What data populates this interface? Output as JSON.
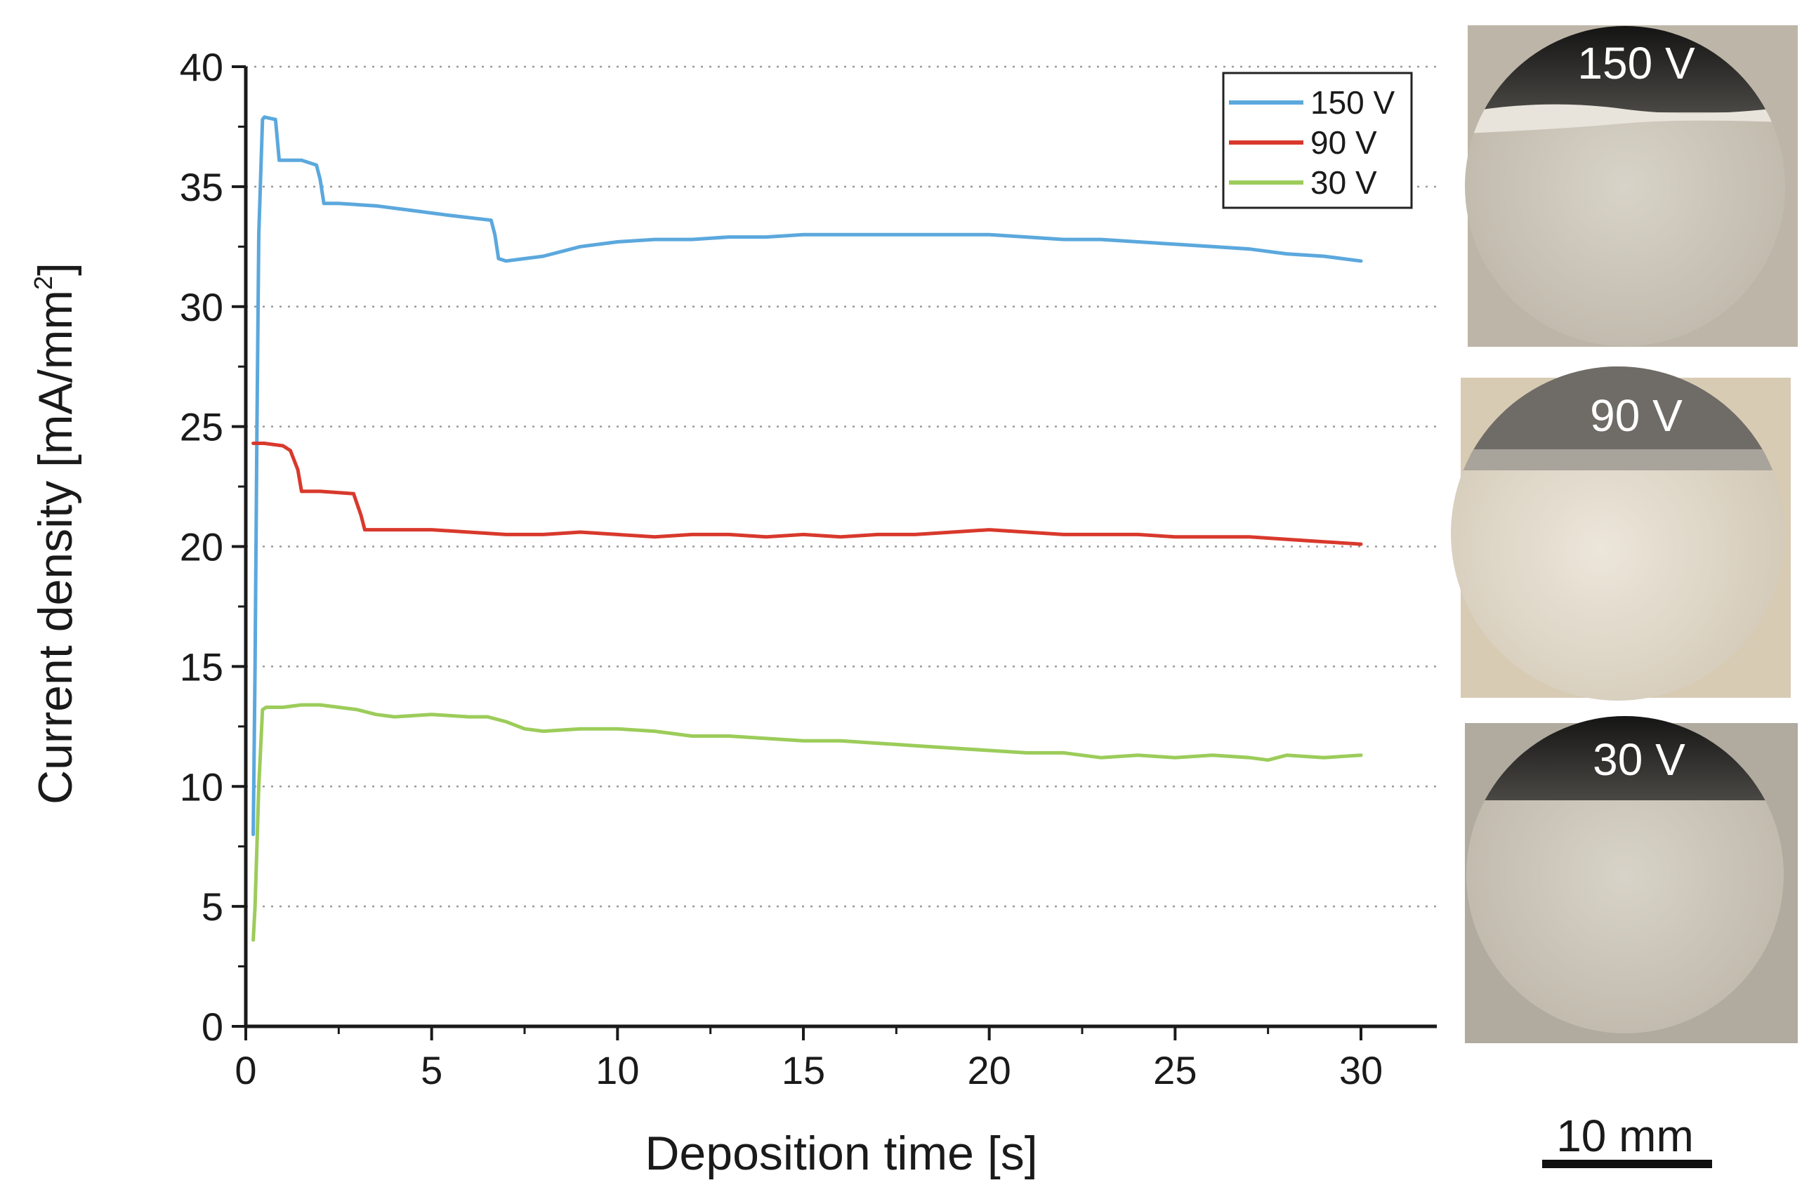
{
  "chart_data": {
    "type": "line",
    "title": "",
    "xlabel": "Deposition time [s]",
    "ylabel": "Current density [mA/mm",
    "ylabel_sup": "2",
    "ylabel_close": "]",
    "xlim": [
      0,
      32
    ],
    "ylim": [
      0,
      40
    ],
    "xticks": [
      "0",
      "5",
      "10",
      "15",
      "20",
      "25",
      "30"
    ],
    "yticks": [
      "0",
      "5",
      "10",
      "15",
      "20",
      "25",
      "30",
      "35",
      "40"
    ],
    "grid": "horizontal dotted",
    "legend_position": "top-right",
    "series": [
      {
        "name": "150 V",
        "color": "#5ba8dd",
        "x": [
          0.2,
          0.25,
          0.3,
          0.35,
          0.45,
          0.5,
          0.8,
          0.9,
          1.5,
          1.9,
          2.0,
          2.1,
          2.5,
          3.5,
          4.5,
          5.5,
          6.6,
          6.7,
          6.8,
          7.0,
          7.5,
          8.0,
          9.0,
          10.0,
          11.0,
          12.0,
          13.0,
          14.0,
          15.0,
          16.0,
          17.0,
          18.0,
          19.0,
          20.0,
          21.0,
          22.0,
          23.0,
          24.0,
          25.0,
          26.0,
          27.0,
          28.0,
          29.0,
          30.0
        ],
        "values": [
          8.0,
          15.0,
          25.0,
          33.0,
          37.8,
          37.9,
          37.8,
          36.1,
          36.1,
          35.9,
          35.3,
          34.3,
          34.3,
          34.2,
          34.0,
          33.8,
          33.6,
          33.0,
          32.0,
          31.9,
          32.0,
          32.1,
          32.5,
          32.7,
          32.8,
          32.8,
          32.9,
          32.9,
          33.0,
          33.0,
          33.0,
          33.0,
          33.0,
          33.0,
          32.9,
          32.8,
          32.8,
          32.7,
          32.6,
          32.5,
          32.4,
          32.2,
          32.1,
          31.9
        ]
      },
      {
        "name": "90 V",
        "color": "#d8392c",
        "x": [
          0.2,
          0.5,
          1.0,
          1.2,
          1.4,
          1.5,
          2.0,
          2.9,
          3.1,
          3.2,
          3.5,
          5.0,
          6.0,
          7.0,
          8.0,
          9.0,
          10.0,
          11.0,
          12.0,
          13.0,
          14.0,
          15.0,
          16.0,
          17.0,
          18.0,
          19.0,
          20.0,
          21.0,
          22.0,
          23.0,
          24.0,
          25.0,
          26.0,
          27.0,
          28.0,
          29.0,
          30.0
        ],
        "values": [
          24.3,
          24.3,
          24.2,
          24.0,
          23.2,
          22.3,
          22.3,
          22.2,
          21.3,
          20.7,
          20.7,
          20.7,
          20.6,
          20.5,
          20.5,
          20.6,
          20.5,
          20.4,
          20.5,
          20.5,
          20.4,
          20.5,
          20.4,
          20.5,
          20.5,
          20.6,
          20.7,
          20.6,
          20.5,
          20.5,
          20.5,
          20.4,
          20.4,
          20.4,
          20.3,
          20.2,
          20.1
        ]
      },
      {
        "name": "30 V",
        "color": "#9ccc5a",
        "x": [
          0.2,
          0.25,
          0.35,
          0.45,
          0.55,
          1.0,
          1.5,
          2.0,
          2.5,
          3.0,
          3.5,
          4.0,
          5.0,
          6.0,
          6.5,
          7.0,
          7.5,
          8.0,
          9.0,
          10.0,
          11.0,
          12.0,
          13.0,
          14.0,
          15.0,
          16.0,
          17.0,
          18.0,
          19.0,
          20.0,
          21.0,
          22.0,
          23.0,
          24.0,
          25.0,
          26.0,
          27.0,
          27.5,
          28.0,
          29.0,
          30.0
        ],
        "values": [
          3.6,
          5.0,
          10.0,
          13.2,
          13.3,
          13.3,
          13.4,
          13.4,
          13.3,
          13.2,
          13.0,
          12.9,
          13.0,
          12.9,
          12.9,
          12.7,
          12.4,
          12.3,
          12.4,
          12.4,
          12.3,
          12.1,
          12.1,
          12.0,
          11.9,
          11.9,
          11.8,
          11.7,
          11.6,
          11.5,
          11.4,
          11.4,
          11.2,
          11.3,
          11.2,
          11.3,
          11.2,
          11.1,
          11.3,
          11.2,
          11.3
        ]
      }
    ]
  },
  "photos": [
    {
      "label": "150 V"
    },
    {
      "label": "90 V"
    },
    {
      "label": "30 V"
    }
  ],
  "scale_bar": {
    "label": "10 mm"
  }
}
